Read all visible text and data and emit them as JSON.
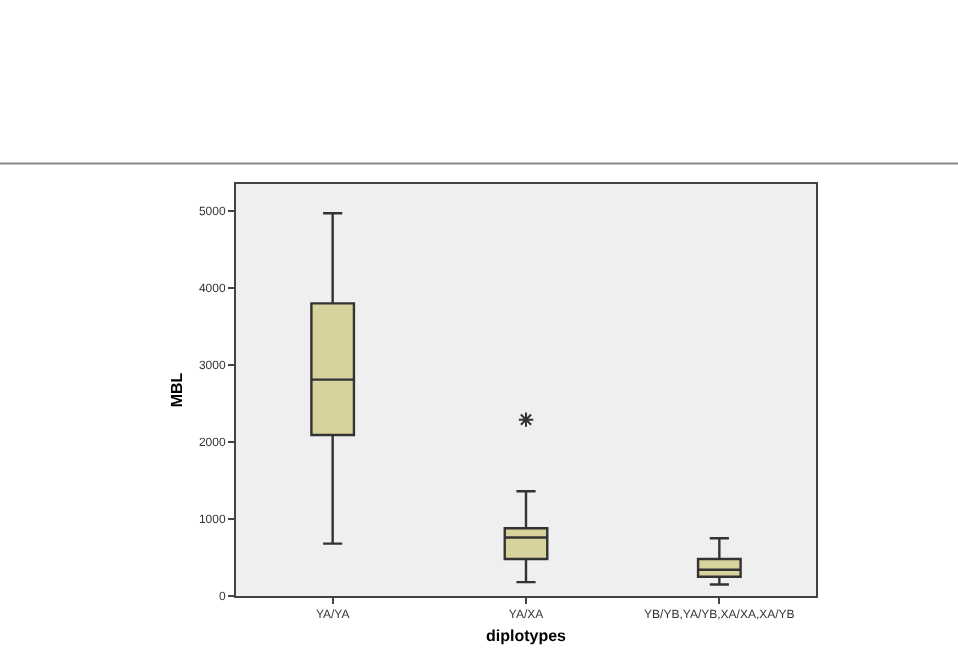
{
  "chart_data": {
    "type": "box",
    "xlabel": "diplotypes",
    "ylabel": "MBL",
    "categories": [
      "YA/YA",
      "YA/XA",
      "YB/YB,YA/YB,XA/XA,XA/YB"
    ],
    "color": "#d8d29c",
    "boxes": [
      {
        "low": 680,
        "q1": 2090,
        "median": 2810,
        "q3": 3800,
        "high": 4970
      },
      {
        "low": 180,
        "q1": 480,
        "median": 760,
        "q3": 880,
        "high": 1360,
        "outliers": [
          2290
        ]
      },
      {
        "low": 150,
        "q1": 250,
        "median": 340,
        "q3": 480,
        "high": 750
      }
    ],
    "ylim": [
      0,
      5350
    ],
    "yticks": [
      0,
      1000,
      2000,
      3000,
      4000,
      5000
    ],
    "grid": false
  }
}
